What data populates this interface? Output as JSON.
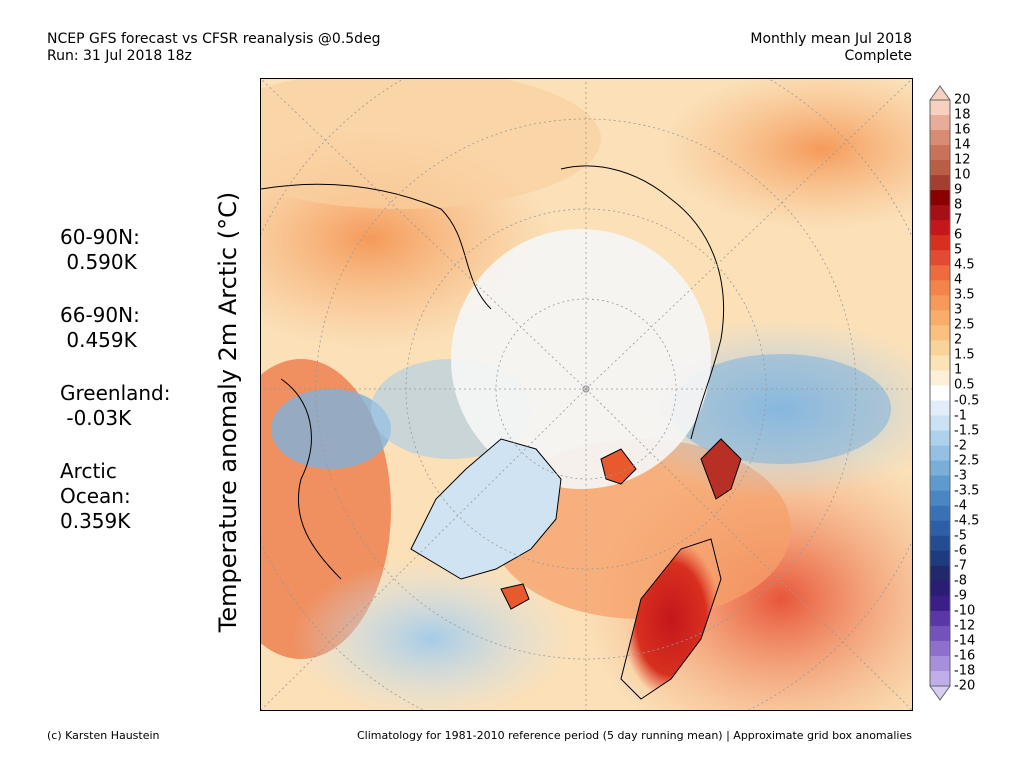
{
  "header": {
    "title_line1": "NCEP GFS forecast vs CFSR reanalysis @0.5deg",
    "title_line2": "Run: 31 Jul 2018 18z",
    "period_line1": "Monthly mean Jul 2018",
    "period_line2": "Complete"
  },
  "side_title": "Temperature anomaly 2m Arctic (°C)",
  "stats": [
    {
      "label": "60-90N:",
      "value": " 0.590K"
    },
    {
      "label": "66-90N:",
      "value": " 0.459K"
    },
    {
      "label": "Greenland:",
      "value": " -0.03K"
    },
    {
      "label": "Arctic\nOcean:",
      "value": "0.359K"
    }
  ],
  "colorbar": {
    "labels": [
      "20",
      "18",
      "16",
      "14",
      "12",
      "10",
      "9",
      "8",
      "7",
      "6",
      "5",
      "4.5",
      "4",
      "3.5",
      "3",
      "2.5",
      "2",
      "1.5",
      "1",
      "0.5",
      "-0.5",
      "-1",
      "-1.5",
      "-2",
      "-2.5",
      "-3",
      "-3.5",
      "-4",
      "-4.5",
      "-5",
      "-6",
      "-7",
      "-8",
      "-9",
      "-10",
      "-12",
      "-14",
      "-16",
      "-18",
      "-20"
    ],
    "colors": [
      "#f7d0c0",
      "#e8ad98",
      "#d98c74",
      "#c87358",
      "#b85e45",
      "#a43e33",
      "#8a0000",
      "#a50f15",
      "#c4161c",
      "#d7301f",
      "#e34a33",
      "#ee6a3f",
      "#f3844c",
      "#f69a5b",
      "#f8ad6a",
      "#f9c07f",
      "#fad39a",
      "#fbe3b7",
      "#fdf0d8",
      "#ffffff",
      "#e1eef9",
      "#cbe2f3",
      "#afd2ec",
      "#93c0e3",
      "#79aed9",
      "#5f9ace",
      "#4a86c2",
      "#3972b4",
      "#2c5fa5",
      "#234c92",
      "#1d3b7e",
      "#21286b",
      "#2c1d74",
      "#3a1f86",
      "#5a36a6",
      "#7353bb",
      "#8c70cc",
      "#a68fdb",
      "#c0aee8"
    ],
    "top_arrow_color": "#f7d0c0",
    "bottom_arrow_color": "#d9ccf2"
  },
  "footer": {
    "left": "(c) Karsten Haustein",
    "right": "Climatology for 1981-2010 reference period (5 day running mean) | Approximate grid box anomalies"
  }
}
